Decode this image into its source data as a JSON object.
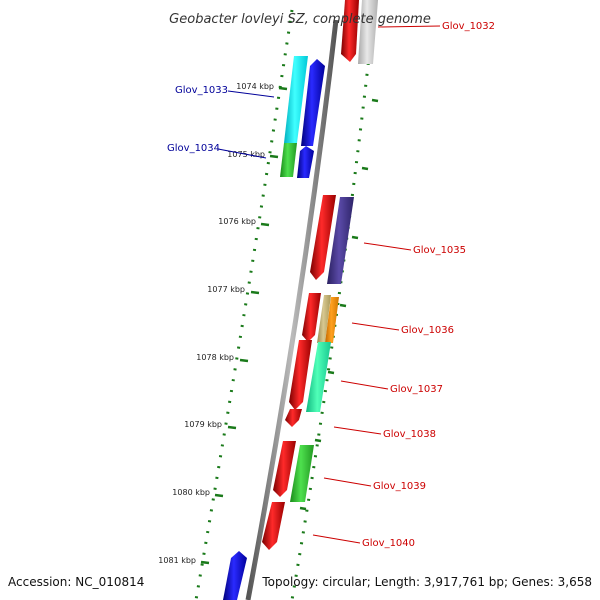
{
  "title": "Geobacter lovleyi SZ, complete genome",
  "footer": {
    "accession": "Accession: NC_010814",
    "topology": "Topology: circular; Length: 3,917,761 bp; Genes: 3,658"
  },
  "colors": {
    "forward_label": "#cc0000",
    "reverse_label": "#000099",
    "tick": "#1a7a1a",
    "backbone": "#888888"
  },
  "ticks": [
    {
      "label": "1074 kbp"
    },
    {
      "label": "1075 kbp"
    },
    {
      "label": "1076 kbp"
    },
    {
      "label": "1077 kbp"
    },
    {
      "label": "1078 kbp"
    },
    {
      "label": "1079 kbp"
    },
    {
      "label": "1080 kbp"
    },
    {
      "label": "1081 kbp"
    }
  ],
  "genes": [
    {
      "label": "Glov_1032",
      "color": "#cc0000"
    },
    {
      "label": "Glov_1033",
      "color": "#000099"
    },
    {
      "label": "Glov_1034",
      "color": "#000099"
    },
    {
      "label": "Glov_1035",
      "color": "#cc0000"
    },
    {
      "label": "Glov_1036",
      "color": "#cc0000"
    },
    {
      "label": "Glov_1037",
      "color": "#cc0000"
    },
    {
      "label": "Glov_1038",
      "color": "#cc0000"
    },
    {
      "label": "Glov_1039",
      "color": "#cc0000"
    },
    {
      "label": "Glov_1040",
      "color": "#cc0000"
    }
  ]
}
